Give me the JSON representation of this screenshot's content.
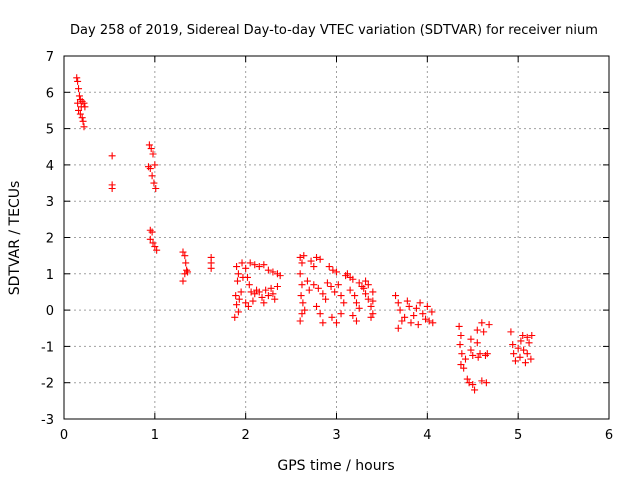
{
  "chart_data": {
    "type": "scatter",
    "title": "Day 258 of 2019, Sidereal Day-to-day VTEC variation (SDTVAR) for receiver nium",
    "xlabel": "GPS time / hours",
    "ylabel": "SDTVAR / TECUs",
    "xlim": [
      0,
      6
    ],
    "ylim": [
      -3,
      7
    ],
    "xticks": [
      0,
      1,
      2,
      3,
      4,
      5,
      6
    ],
    "yticks": [
      -3,
      -2,
      -1,
      0,
      1,
      2,
      3,
      4,
      5,
      6,
      7
    ],
    "grid": true,
    "marker": "+",
    "series": [
      {
        "name": "SDTVAR",
        "color": "#ff0000",
        "points": [
          [
            0.14,
            6.4
          ],
          [
            0.15,
            6.3
          ],
          [
            0.16,
            6.1
          ],
          [
            0.17,
            5.9
          ],
          [
            0.15,
            5.7
          ],
          [
            0.18,
            5.8
          ],
          [
            0.2,
            5.75
          ],
          [
            0.22,
            5.7
          ],
          [
            0.16,
            5.5
          ],
          [
            0.18,
            5.4
          ],
          [
            0.2,
            5.3
          ],
          [
            0.21,
            5.2
          ],
          [
            0.22,
            5.05
          ],
          [
            0.19,
            5.6
          ],
          [
            0.23,
            5.6
          ],
          [
            0.53,
            4.25
          ],
          [
            0.53,
            3.45
          ],
          [
            0.53,
            3.35
          ],
          [
            0.94,
            4.55
          ],
          [
            0.96,
            4.45
          ],
          [
            0.98,
            4.3
          ],
          [
            1.0,
            4.0
          ],
          [
            0.95,
            3.9
          ],
          [
            0.97,
            3.7
          ],
          [
            0.99,
            3.5
          ],
          [
            1.01,
            3.35
          ],
          [
            0.93,
            3.95
          ],
          [
            0.95,
            2.2
          ],
          [
            0.97,
            2.15
          ],
          [
            0.95,
            1.95
          ],
          [
            0.98,
            1.85
          ],
          [
            1.0,
            1.75
          ],
          [
            1.02,
            1.65
          ],
          [
            1.31,
            1.6
          ],
          [
            1.33,
            1.5
          ],
          [
            1.34,
            1.3
          ],
          [
            1.35,
            1.1
          ],
          [
            1.33,
            1.0
          ],
          [
            1.31,
            0.8
          ],
          [
            1.36,
            1.05
          ],
          [
            1.62,
            1.45
          ],
          [
            1.62,
            1.3
          ],
          [
            1.62,
            1.15
          ],
          [
            1.9,
            1.2
          ],
          [
            1.92,
            1.0
          ],
          [
            1.91,
            0.8
          ],
          [
            1.89,
            0.4
          ],
          [
            1.93,
            0.3
          ],
          [
            1.95,
            0.5
          ],
          [
            1.9,
            0.15
          ],
          [
            1.92,
            -0.05
          ],
          [
            1.88,
            -0.2
          ],
          [
            1.96,
            1.3
          ],
          [
            1.97,
            0.9
          ],
          [
            2.0,
            1.15
          ],
          [
            2.02,
            0.9
          ],
          [
            2.04,
            0.7
          ],
          [
            2.06,
            0.5
          ],
          [
            2.0,
            0.2
          ],
          [
            2.03,
            0.1
          ],
          [
            2.08,
            0.25
          ],
          [
            2.1,
            0.45
          ],
          [
            2.12,
            0.55
          ],
          [
            2.05,
            1.3
          ],
          [
            2.1,
            1.25
          ],
          [
            2.15,
            1.2
          ],
          [
            2.2,
            1.25
          ],
          [
            2.25,
            1.1
          ],
          [
            2.15,
            0.5
          ],
          [
            2.18,
            0.35
          ],
          [
            2.2,
            0.2
          ],
          [
            2.22,
            0.55
          ],
          [
            2.25,
            0.4
          ],
          [
            2.28,
            0.6
          ],
          [
            2.3,
            0.45
          ],
          [
            2.32,
            0.3
          ],
          [
            2.35,
            0.65
          ],
          [
            2.3,
            1.05
          ],
          [
            2.35,
            1.0
          ],
          [
            2.38,
            0.95
          ],
          [
            2.6,
            1.45
          ],
          [
            2.62,
            1.3
          ],
          [
            2.64,
            1.5
          ],
          [
            2.6,
            1.0
          ],
          [
            2.62,
            0.7
          ],
          [
            2.61,
            0.4
          ],
          [
            2.63,
            0.2
          ],
          [
            2.62,
            -0.1
          ],
          [
            2.6,
            -0.3
          ],
          [
            2.65,
            0.0
          ],
          [
            2.68,
            0.8
          ],
          [
            2.7,
            0.55
          ],
          [
            2.72,
            1.35
          ],
          [
            2.75,
            1.2
          ],
          [
            2.78,
            1.45
          ],
          [
            2.82,
            1.4
          ],
          [
            2.75,
            0.7
          ],
          [
            2.8,
            0.6
          ],
          [
            2.85,
            0.45
          ],
          [
            2.78,
            0.1
          ],
          [
            2.82,
            -0.1
          ],
          [
            2.85,
            -0.35
          ],
          [
            2.88,
            0.3
          ],
          [
            2.9,
            0.75
          ],
          [
            2.92,
            1.2
          ],
          [
            2.96,
            1.1
          ],
          [
            3.0,
            1.05
          ],
          [
            2.94,
            0.65
          ],
          [
            2.98,
            0.5
          ],
          [
            3.02,
            0.7
          ],
          [
            3.05,
            0.4
          ],
          [
            2.95,
            -0.2
          ],
          [
            3.0,
            -0.35
          ],
          [
            3.05,
            -0.1
          ],
          [
            3.08,
            0.2
          ],
          [
            3.1,
            0.95
          ],
          [
            3.12,
            1.0
          ],
          [
            3.15,
            0.9
          ],
          [
            3.18,
            0.85
          ],
          [
            3.15,
            0.55
          ],
          [
            3.2,
            0.4
          ],
          [
            3.22,
            0.2
          ],
          [
            3.18,
            -0.15
          ],
          [
            3.22,
            -0.3
          ],
          [
            3.25,
            0.05
          ],
          [
            3.25,
            0.75
          ],
          [
            3.28,
            0.65
          ],
          [
            3.3,
            0.6
          ],
          [
            3.32,
            0.45
          ],
          [
            3.35,
            0.3
          ],
          [
            3.38,
            0.1
          ],
          [
            3.4,
            -0.1
          ],
          [
            3.32,
            0.8
          ],
          [
            3.35,
            0.7
          ],
          [
            3.4,
            0.5
          ],
          [
            3.4,
            0.25
          ],
          [
            3.38,
            -0.2
          ],
          [
            3.65,
            0.4
          ],
          [
            3.68,
            0.2
          ],
          [
            3.7,
            0.0
          ],
          [
            3.72,
            -0.3
          ],
          [
            3.68,
            -0.5
          ],
          [
            3.75,
            -0.2
          ],
          [
            3.78,
            0.25
          ],
          [
            3.8,
            0.1
          ],
          [
            3.82,
            -0.35
          ],
          [
            3.85,
            -0.15
          ],
          [
            3.88,
            0.05
          ],
          [
            3.9,
            -0.4
          ],
          [
            3.92,
            0.2
          ],
          [
            3.95,
            -0.1
          ],
          [
            3.98,
            -0.25
          ],
          [
            4.0,
            0.1
          ],
          [
            4.02,
            -0.3
          ],
          [
            4.05,
            -0.05
          ],
          [
            4.06,
            -0.35
          ],
          [
            4.35,
            -0.45
          ],
          [
            4.37,
            -0.7
          ],
          [
            4.36,
            -0.95
          ],
          [
            4.38,
            -1.2
          ],
          [
            4.37,
            -1.5
          ],
          [
            4.4,
            -1.6
          ],
          [
            4.42,
            -1.35
          ],
          [
            4.44,
            -1.9
          ],
          [
            4.46,
            -2.0
          ],
          [
            4.48,
            -1.1
          ],
          [
            4.5,
            -1.25
          ],
          [
            4.5,
            -2.05
          ],
          [
            4.52,
            -2.2
          ],
          [
            4.55,
            -0.9
          ],
          [
            4.56,
            -1.3
          ],
          [
            4.58,
            -1.2
          ],
          [
            4.6,
            -0.35
          ],
          [
            4.62,
            -0.6
          ],
          [
            4.6,
            -1.95
          ],
          [
            4.64,
            -1.25
          ],
          [
            4.66,
            -1.2
          ],
          [
            4.65,
            -2.0
          ],
          [
            4.68,
            -0.4
          ],
          [
            4.55,
            -0.55
          ],
          [
            4.48,
            -0.8
          ],
          [
            4.92,
            -0.6
          ],
          [
            4.94,
            -0.95
          ],
          [
            4.95,
            -1.2
          ],
          [
            4.97,
            -1.4
          ],
          [
            5.0,
            -1.05
          ],
          [
            5.02,
            -1.3
          ],
          [
            5.05,
            -0.7
          ],
          [
            5.06,
            -1.1
          ],
          [
            5.08,
            -1.45
          ],
          [
            5.1,
            -0.75
          ],
          [
            5.1,
            -1.2
          ],
          [
            5.12,
            -0.9
          ],
          [
            5.14,
            -1.35
          ],
          [
            5.15,
            -0.7
          ],
          [
            5.03,
            -0.85
          ]
        ]
      }
    ]
  }
}
